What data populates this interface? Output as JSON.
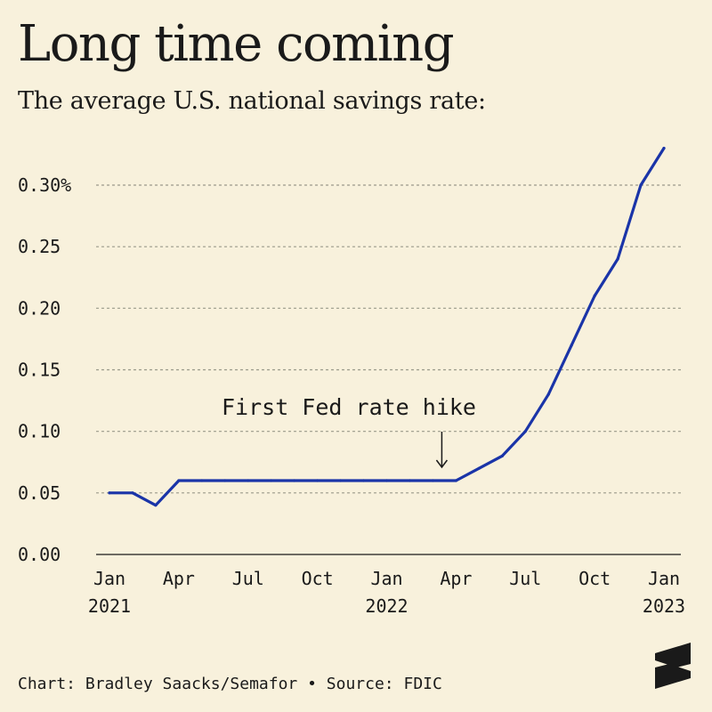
{
  "header": {
    "title": "Long time coming",
    "subtitle": "The average U.S. national savings rate:"
  },
  "footer": {
    "credit": "Chart: Bradley Saacks/Semafor • Source: FDIC"
  },
  "brand": {
    "logo_icon": "semafor-s-logo-icon"
  },
  "colors": {
    "background": "#f8f1dc",
    "line": "#1a34a8",
    "grid": "#9a9a8a",
    "text": "#1a1a1a"
  },
  "chart_data": {
    "type": "line",
    "title": "Long time coming",
    "subtitle": "The average U.S. national savings rate:",
    "xlabel": "",
    "ylabel": "",
    "ylim": [
      0,
      0.33
    ],
    "xlim": [
      "2021-01",
      "2023-01"
    ],
    "y_ticks": [
      {
        "value": 0.0,
        "label": "0.00"
      },
      {
        "value": 0.05,
        "label": "0.05"
      },
      {
        "value": 0.1,
        "label": "0.10"
      },
      {
        "value": 0.15,
        "label": "0.15"
      },
      {
        "value": 0.2,
        "label": "0.20"
      },
      {
        "value": 0.25,
        "label": "0.25"
      },
      {
        "value": 0.3,
        "label": "0.30%"
      }
    ],
    "x_ticks": [
      {
        "month": "2021-01",
        "label": "Jan",
        "year": "2021"
      },
      {
        "month": "2021-04",
        "label": "Apr",
        "year": ""
      },
      {
        "month": "2021-07",
        "label": "Jul",
        "year": ""
      },
      {
        "month": "2021-10",
        "label": "Oct",
        "year": ""
      },
      {
        "month": "2022-01",
        "label": "Jan",
        "year": "2022"
      },
      {
        "month": "2022-04",
        "label": "Apr",
        "year": ""
      },
      {
        "month": "2022-07",
        "label": "Jul",
        "year": ""
      },
      {
        "month": "2022-10",
        "label": "Oct",
        "year": ""
      },
      {
        "month": "2023-01",
        "label": "Jan",
        "year": "2023"
      }
    ],
    "grid": true,
    "legend": "none",
    "series": [
      {
        "points": [
          {
            "x": "2021-01",
            "y": 0.05
          },
          {
            "x": "2021-02",
            "y": 0.05
          },
          {
            "x": "2021-03",
            "y": 0.04
          },
          {
            "x": "2021-04",
            "y": 0.06
          },
          {
            "x": "2021-05",
            "y": 0.06
          },
          {
            "x": "2021-06",
            "y": 0.06
          },
          {
            "x": "2021-07",
            "y": 0.06
          },
          {
            "x": "2021-08",
            "y": 0.06
          },
          {
            "x": "2021-09",
            "y": 0.06
          },
          {
            "x": "2021-10",
            "y": 0.06
          },
          {
            "x": "2021-11",
            "y": 0.06
          },
          {
            "x": "2021-12",
            "y": 0.06
          },
          {
            "x": "2022-01",
            "y": 0.06
          },
          {
            "x": "2022-02",
            "y": 0.06
          },
          {
            "x": "2022-03",
            "y": 0.06
          },
          {
            "x": "2022-04",
            "y": 0.06
          },
          {
            "x": "2022-05",
            "y": 0.07
          },
          {
            "x": "2022-06",
            "y": 0.08
          },
          {
            "x": "2022-07",
            "y": 0.1
          },
          {
            "x": "2022-08",
            "y": 0.13
          },
          {
            "x": "2022-09",
            "y": 0.17
          },
          {
            "x": "2022-10",
            "y": 0.21
          },
          {
            "x": "2022-11",
            "y": 0.24
          },
          {
            "x": "2022-12",
            "y": 0.3
          },
          {
            "x": "2023-01",
            "y": 0.33
          }
        ]
      }
    ],
    "annotations": [
      {
        "text": "First Fed rate hike",
        "x": "2022-03",
        "y": 0.06
      }
    ]
  }
}
